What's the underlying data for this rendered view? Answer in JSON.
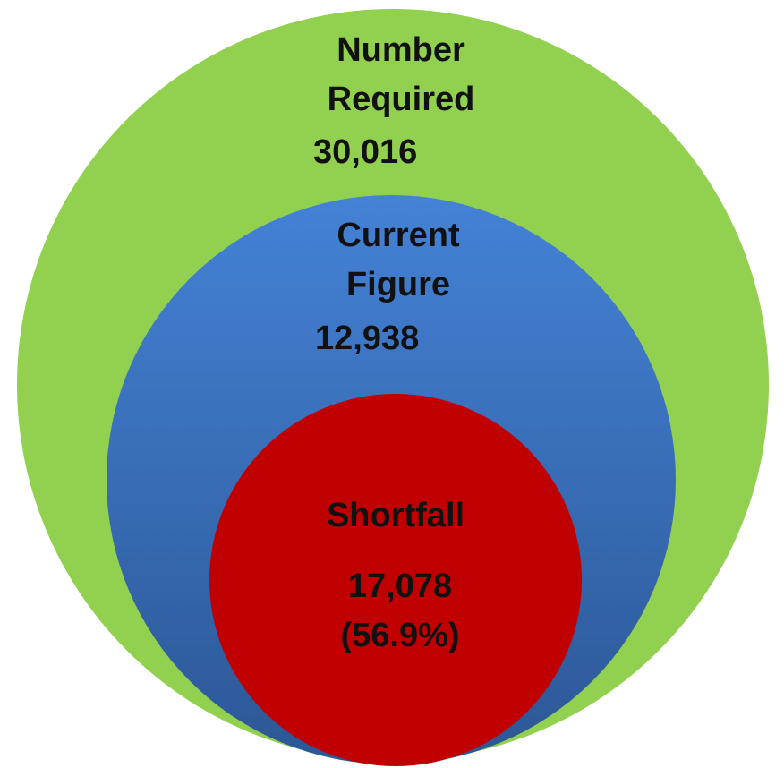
{
  "nodes": [
    {
      "label": [
        "Number",
        "Required"
      ],
      "value": "30,016"
    },
    {
      "label": [
        "Current",
        "Figure"
      ],
      "value": "12,938"
    },
    {
      "label": [
        "Shortfall"
      ],
      "value": "17,078",
      "share": "(56.9%)"
    }
  ]
}
